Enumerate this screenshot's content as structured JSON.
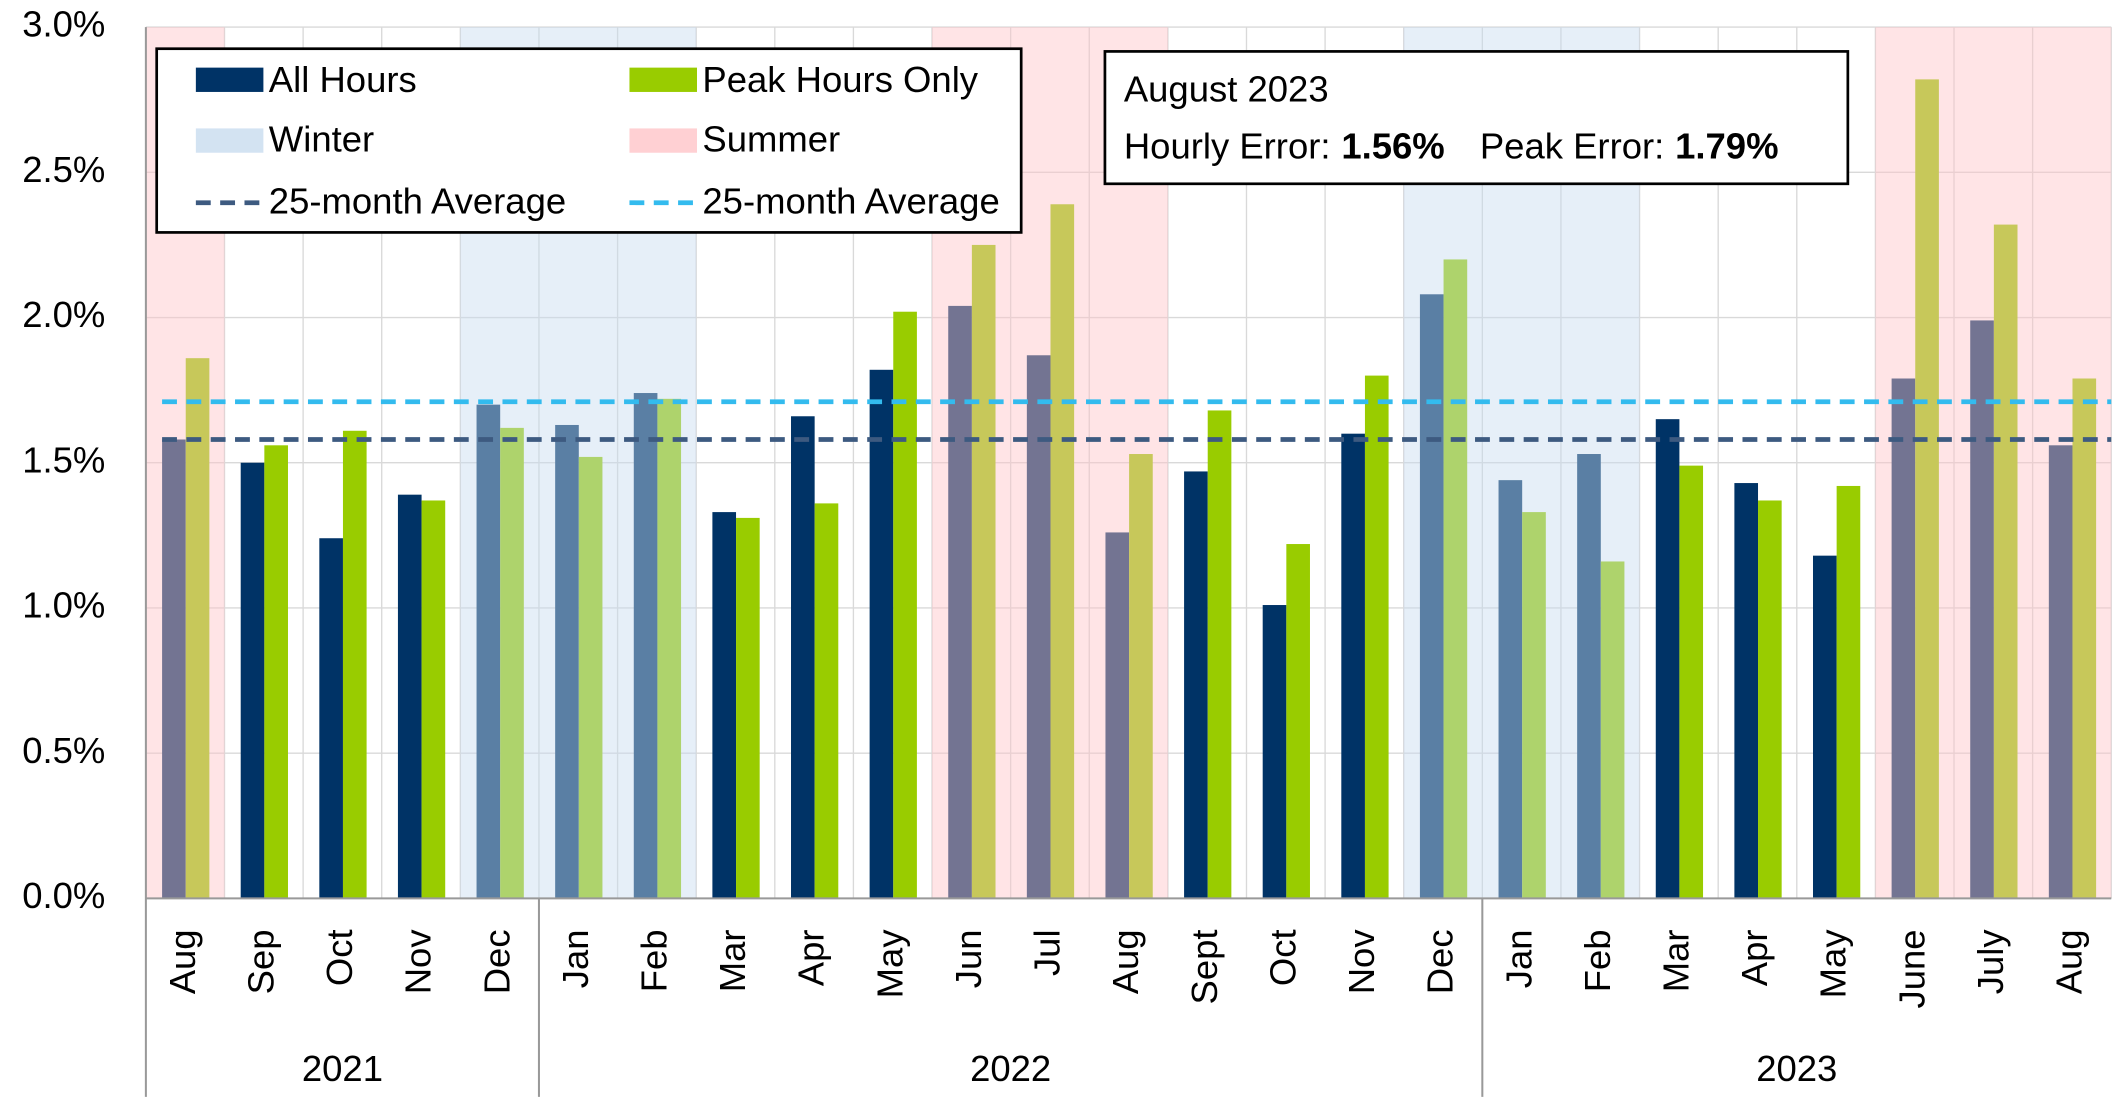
{
  "chart_data": {
    "type": "bar",
    "categories": [
      "Aug",
      "Sep",
      "Oct",
      "Nov",
      "Dec",
      "Jan",
      "Feb",
      "Mar",
      "Apr",
      "May",
      "Jun",
      "Jul",
      "Aug",
      "Sept",
      "Oct",
      "Nov",
      "Dec",
      "Jan",
      "Feb",
      "Mar",
      "Apr",
      "May",
      "June",
      "July",
      "Aug"
    ],
    "years": [
      "2021",
      "2021",
      "2021",
      "2021",
      "2021",
      "2022",
      "2022",
      "2022",
      "2022",
      "2022",
      "2022",
      "2022",
      "2022",
      "2022",
      "2022",
      "2022",
      "2022",
      "2023",
      "2023",
      "2023",
      "2023",
      "2023",
      "2023",
      "2023",
      "2023"
    ],
    "season": [
      "Summer",
      null,
      null,
      null,
      "Winter",
      "Winter",
      "Winter",
      null,
      null,
      null,
      "Summer",
      "Summer",
      "Summer",
      null,
      null,
      null,
      "Winter",
      "Winter",
      "Winter",
      null,
      null,
      null,
      "Summer",
      "Summer",
      "Summer"
    ],
    "areas": [
      {
        "name": "Winter",
        "color": "#c8dcef"
      },
      {
        "name": "Summer",
        "color": "#ffc4c8"
      }
    ],
    "series": [
      {
        "name": "All Hours",
        "color": "#003366",
        "values": [
          1.58,
          1.5,
          1.24,
          1.39,
          1.7,
          1.63,
          1.74,
          1.33,
          1.66,
          1.82,
          2.04,
          1.87,
          1.26,
          1.47,
          1.01,
          1.6,
          2.08,
          1.44,
          1.53,
          1.65,
          1.43,
          1.18,
          1.79,
          1.99,
          1.56
        ]
      },
      {
        "name": "Peak Hours Only",
        "color": "#99cc00",
        "values": [
          1.86,
          1.56,
          1.61,
          1.37,
          1.62,
          1.52,
          1.72,
          1.31,
          1.36,
          2.02,
          2.25,
          2.39,
          1.53,
          1.68,
          1.22,
          1.8,
          2.2,
          1.33,
          1.16,
          1.49,
          1.37,
          1.42,
          2.82,
          2.32,
          1.79
        ]
      }
    ],
    "reference_lines": [
      {
        "name": "25-month Average",
        "value": 1.58,
        "color": "#3d5a80"
      },
      {
        "name": "25-month Average",
        "value": 1.71,
        "color": "#33bbee"
      }
    ],
    "annotation": {
      "title": "August 2023",
      "hourly_label": "Hourly Error:",
      "hourly_value": "1.56%",
      "peak_label": "Peak Error:",
      "peak_value": "1.79%"
    },
    "ylim": [
      0,
      3.0
    ],
    "yticks": [
      {
        "value": 0,
        "label": "0.0%"
      },
      {
        "value": 0.5,
        "label": "0.5%"
      },
      {
        "value": 1.0,
        "label": "1.0%"
      },
      {
        "value": 1.5,
        "label": "1.5%"
      },
      {
        "value": 2.0,
        "label": "2.0%"
      },
      {
        "value": 2.5,
        "label": "2.5%"
      },
      {
        "value": 3.0,
        "label": "3.0%"
      }
    ],
    "grid": true
  }
}
